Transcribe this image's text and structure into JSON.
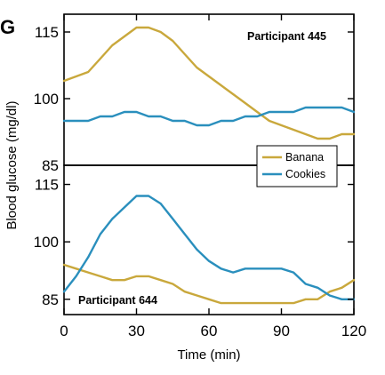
{
  "figure": {
    "panel_letter": "G",
    "ylabel": "Blood glucose (mg/dl)",
    "xlabel": "Time (min)"
  },
  "legend": {
    "items": [
      {
        "label": "Banana",
        "color": "#c9a83c"
      },
      {
        "label": "Cookies",
        "color": "#2a8fbd"
      }
    ]
  },
  "chart_data": [
    {
      "type": "line",
      "panel": "top",
      "annotation": "Participant 445",
      "x": [
        0,
        5,
        10,
        15,
        20,
        25,
        30,
        35,
        40,
        45,
        50,
        55,
        60,
        65,
        70,
        75,
        80,
        85,
        90,
        95,
        100,
        105,
        110,
        115,
        120
      ],
      "xlim": [
        0,
        120
      ],
      "ylim": [
        85,
        119
      ],
      "yticks": [
        85,
        100,
        115
      ],
      "xticks": [
        0,
        30,
        60,
        90,
        120
      ],
      "series": [
        {
          "name": "Banana",
          "color": "#c9a83c",
          "values": [
            104,
            105,
            106,
            109,
            112,
            114,
            116,
            116,
            115,
            113,
            110,
            107,
            105,
            103,
            101,
            99,
            97,
            95,
            94,
            93,
            92,
            91,
            91,
            92,
            92
          ]
        },
        {
          "name": "Cookies",
          "color": "#2a8fbd",
          "values": [
            95,
            95,
            95,
            96,
            96,
            97,
            97,
            96,
            96,
            95,
            95,
            94,
            94,
            95,
            95,
            96,
            96,
            97,
            97,
            97,
            98,
            98,
            98,
            98,
            97
          ]
        }
      ],
      "grid": false
    },
    {
      "type": "line",
      "panel": "bottom",
      "annotation": "Participant 644",
      "x": [
        0,
        5,
        10,
        15,
        20,
        25,
        30,
        35,
        40,
        45,
        50,
        55,
        60,
        65,
        70,
        75,
        80,
        85,
        90,
        95,
        100,
        105,
        110,
        115,
        120
      ],
      "xlim": [
        0,
        120
      ],
      "ylim": [
        81,
        120
      ],
      "yticks": [
        85,
        100,
        115
      ],
      "xticks": [
        0,
        30,
        60,
        90,
        120
      ],
      "series": [
        {
          "name": "Banana",
          "color": "#c9a83c",
          "values": [
            94,
            93,
            92,
            91,
            90,
            90,
            91,
            91,
            90,
            89,
            87,
            86,
            85,
            84,
            84,
            84,
            84,
            84,
            84,
            84,
            85,
            85,
            87,
            88,
            90
          ]
        },
        {
          "name": "Cookies",
          "color": "#2a8fbd",
          "values": [
            87,
            91,
            96,
            102,
            106,
            109,
            112,
            112,
            110,
            106,
            102,
            98,
            95,
            93,
            92,
            93,
            93,
            93,
            93,
            92,
            89,
            88,
            86,
            85,
            85
          ]
        }
      ],
      "grid": false
    }
  ]
}
